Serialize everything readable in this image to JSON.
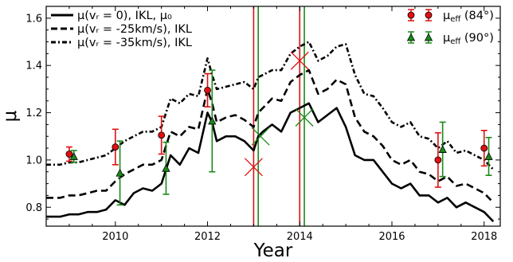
{
  "chart_data": {
    "type": "line",
    "xlabel": "Year",
    "ylabel": "μ",
    "xlim": [
      2008.5,
      2018.35
    ],
    "ylim": [
      0.72,
      1.65
    ],
    "xticks": [
      2010,
      2012,
      2014,
      2016,
      2018
    ],
    "xtick_labels": [
      "2010",
      "2012",
      "2014",
      "2016",
      "2018"
    ],
    "yticks": [
      0.8,
      1.0,
      1.2,
      1.4,
      1.6
    ],
    "ytick_labels": [
      "0.8",
      "1.0",
      "1.2",
      "1.4",
      "1.6"
    ],
    "grid": false,
    "legend_left": {
      "placement": "top-left",
      "entries": [
        {
          "label": "μ(vᵣ = 0), IKL, μ₀",
          "style": "solid"
        },
        {
          "label": "μ(vᵣ = -25km/s), IKL",
          "style": "dashed"
        },
        {
          "label": "μ(vᵣ = -35km/s), IKL",
          "style": "dashdot"
        }
      ]
    },
    "legend_right": {
      "placement": "top-right",
      "entries": [
        {
          "label": "μeff (84°)",
          "color": "#e01010",
          "marker": "circle"
        },
        {
          "label": "μeff (90°)",
          "color": "#1a8a1a",
          "marker": "triangle"
        }
      ]
    },
    "vertical_lines": [
      {
        "x": 2013.0,
        "color": "#e01010"
      },
      {
        "x": 2013.1,
        "color": "#1a8a1a"
      },
      {
        "x": 2014.0,
        "color": "#e01010"
      },
      {
        "x": 2014.1,
        "color": "#1a8a1a"
      }
    ],
    "x_markers": [
      {
        "x": 2013.0,
        "y": 0.97,
        "color": "#e01010"
      },
      {
        "x": 2013.15,
        "y": 1.1,
        "color": "#1a8a1a"
      },
      {
        "x": 2014.0,
        "y": 1.42,
        "color": "#e01010"
      },
      {
        "x": 2014.1,
        "y": 1.18,
        "color": "#1a8a1a"
      }
    ],
    "series": [
      {
        "style": "solid",
        "x": [
          2008.5,
          2008.8,
          2009.0,
          2009.2,
          2009.4,
          2009.6,
          2009.8,
          2010.0,
          2010.2,
          2010.4,
          2010.6,
          2010.8,
          2011.0,
          2011.2,
          2011.4,
          2011.6,
          2011.8,
          2012.0,
          2012.1,
          2012.2,
          2012.4,
          2012.6,
          2012.8,
          2013.0,
          2013.1,
          2013.2,
          2013.4,
          2013.6,
          2013.8,
          2014.0,
          2014.2,
          2014.4,
          2014.6,
          2014.8,
          2015.0,
          2015.2,
          2015.4,
          2015.6,
          2015.8,
          2016.0,
          2016.2,
          2016.4,
          2016.6,
          2016.8,
          2017.0,
          2017.2,
          2017.4,
          2017.6,
          2017.8,
          2018.0,
          2018.2
        ],
        "y": [
          0.76,
          0.76,
          0.77,
          0.77,
          0.78,
          0.78,
          0.79,
          0.83,
          0.81,
          0.86,
          0.88,
          0.87,
          0.9,
          1.02,
          0.98,
          1.05,
          1.03,
          1.2,
          1.16,
          1.08,
          1.1,
          1.1,
          1.08,
          1.04,
          1.1,
          1.12,
          1.15,
          1.12,
          1.2,
          1.22,
          1.24,
          1.16,
          1.19,
          1.22,
          1.14,
          1.02,
          1.0,
          1.0,
          0.95,
          0.9,
          0.88,
          0.9,
          0.85,
          0.85,
          0.82,
          0.84,
          0.8,
          0.82,
          0.8,
          0.78,
          0.74
        ]
      },
      {
        "style": "dashed",
        "x": [
          2008.5,
          2008.8,
          2009.0,
          2009.2,
          2009.4,
          2009.6,
          2009.8,
          2010.0,
          2010.2,
          2010.4,
          2010.6,
          2010.8,
          2011.0,
          2011.2,
          2011.4,
          2011.6,
          2011.8,
          2012.0,
          2012.1,
          2012.2,
          2012.4,
          2012.6,
          2012.8,
          2013.0,
          2013.1,
          2013.2,
          2013.4,
          2013.6,
          2013.8,
          2014.0,
          2014.2,
          2014.4,
          2014.6,
          2014.8,
          2015.0,
          2015.2,
          2015.4,
          2015.6,
          2015.8,
          2016.0,
          2016.2,
          2016.4,
          2016.6,
          2016.8,
          2017.0,
          2017.2,
          2017.4,
          2017.6,
          2017.8,
          2018.0,
          2018.2
        ],
        "y": [
          0.84,
          0.84,
          0.85,
          0.85,
          0.86,
          0.87,
          0.87,
          0.91,
          0.94,
          0.96,
          0.98,
          0.98,
          1.0,
          1.12,
          1.1,
          1.14,
          1.13,
          1.3,
          1.24,
          1.16,
          1.18,
          1.19,
          1.17,
          1.14,
          1.2,
          1.22,
          1.26,
          1.25,
          1.33,
          1.36,
          1.38,
          1.28,
          1.3,
          1.34,
          1.32,
          1.18,
          1.12,
          1.1,
          1.06,
          1.0,
          0.98,
          1.0,
          0.95,
          0.94,
          0.91,
          0.93,
          0.89,
          0.9,
          0.88,
          0.86,
          0.82
        ]
      },
      {
        "style": "dashdot",
        "x": [
          2008.5,
          2008.8,
          2009.0,
          2009.2,
          2009.4,
          2009.6,
          2009.8,
          2010.0,
          2010.2,
          2010.4,
          2010.6,
          2010.8,
          2011.0,
          2011.2,
          2011.4,
          2011.6,
          2011.8,
          2012.0,
          2012.1,
          2012.2,
          2012.4,
          2012.6,
          2012.8,
          2013.0,
          2013.1,
          2013.2,
          2013.4,
          2013.6,
          2013.8,
          2014.0,
          2014.2,
          2014.4,
          2014.6,
          2014.8,
          2015.0,
          2015.2,
          2015.4,
          2015.6,
          2015.8,
          2016.0,
          2016.2,
          2016.4,
          2016.6,
          2016.8,
          2017.0,
          2017.2,
          2017.4,
          2017.6,
          2017.8,
          2018.0,
          2018.2
        ],
        "y": [
          0.98,
          0.98,
          0.99,
          0.99,
          1.0,
          1.01,
          1.02,
          1.05,
          1.08,
          1.1,
          1.12,
          1.12,
          1.14,
          1.26,
          1.24,
          1.28,
          1.27,
          1.43,
          1.36,
          1.3,
          1.31,
          1.32,
          1.33,
          1.3,
          1.35,
          1.36,
          1.38,
          1.38,
          1.45,
          1.48,
          1.5,
          1.42,
          1.44,
          1.48,
          1.49,
          1.36,
          1.28,
          1.27,
          1.22,
          1.16,
          1.14,
          1.16,
          1.1,
          1.09,
          1.05,
          1.08,
          1.03,
          1.04,
          1.02,
          1.0,
          0.96
        ]
      }
    ],
    "errorbars": [
      {
        "name": "μeff (84°)",
        "color": "#e01010",
        "marker": "circle",
        "points": [
          {
            "x": 2009.0,
            "y": 1.025,
            "err": 0.03
          },
          {
            "x": 2010.0,
            "y": 1.055,
            "err": 0.075
          },
          {
            "x": 2011.0,
            "y": 1.105,
            "err": 0.08
          },
          {
            "x": 2012.0,
            "y": 1.295,
            "err": 0.07
          },
          {
            "x": 2017.0,
            "y": 1.0,
            "err": 0.115
          },
          {
            "x": 2018.0,
            "y": 1.05,
            "err": 0.075
          }
        ]
      },
      {
        "name": "μeff (90°)",
        "color": "#1a8a1a",
        "marker": "triangle",
        "points": [
          {
            "x": 2009.1,
            "y": 1.015,
            "err": 0.025
          },
          {
            "x": 2010.1,
            "y": 0.945,
            "err": 0.135
          },
          {
            "x": 2011.1,
            "y": 0.965,
            "err": 0.11
          },
          {
            "x": 2012.1,
            "y": 1.165,
            "err": 0.215
          },
          {
            "x": 2017.1,
            "y": 1.045,
            "err": 0.115
          },
          {
            "x": 2018.1,
            "y": 1.015,
            "err": 0.08
          }
        ]
      }
    ]
  }
}
